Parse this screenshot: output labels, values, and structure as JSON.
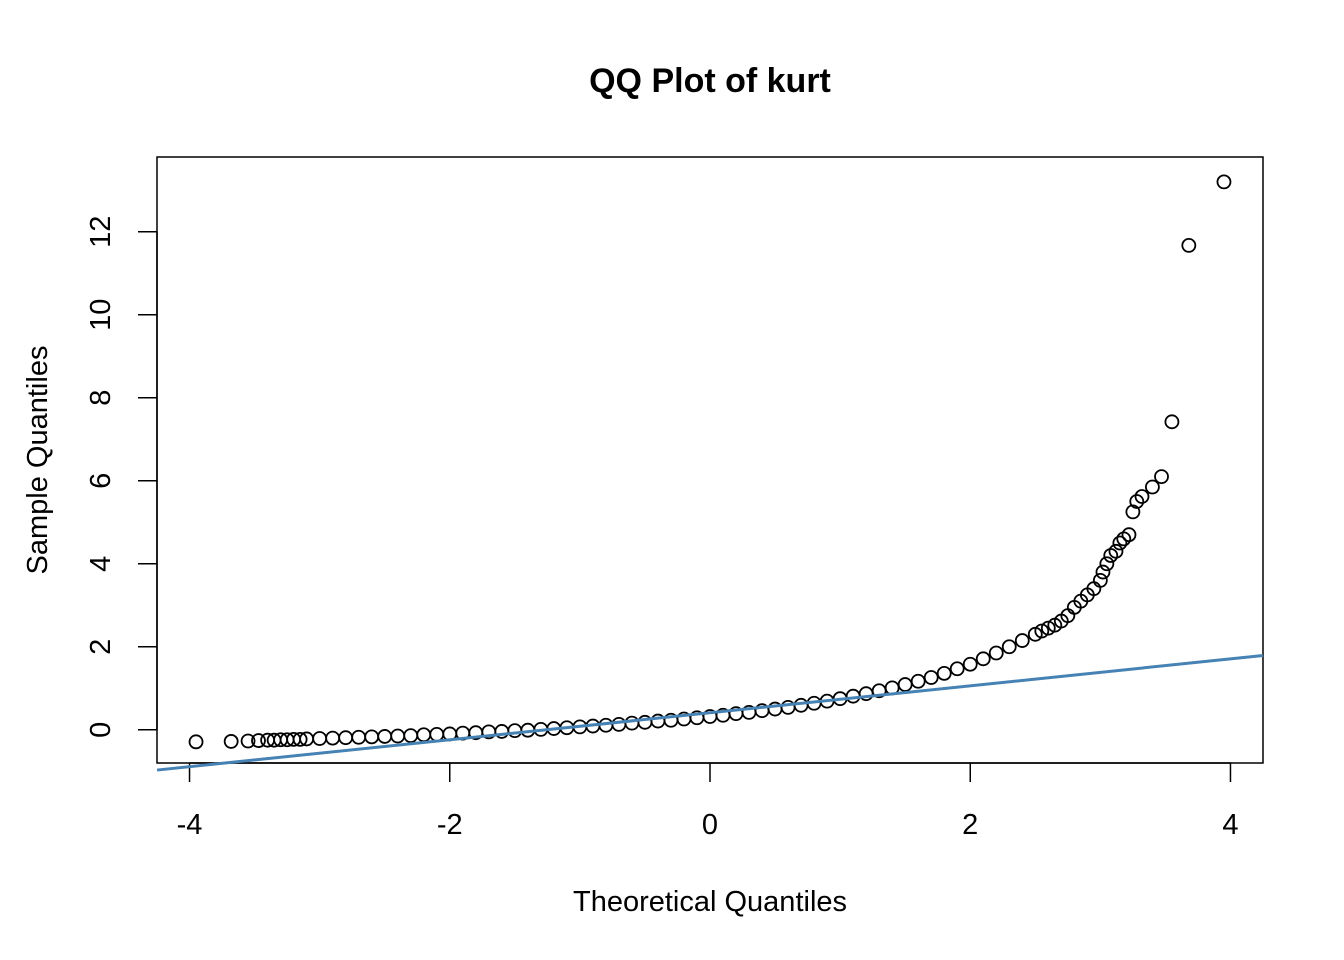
{
  "chart_data": {
    "type": "scatter",
    "title": "QQ Plot of kurt",
    "xlabel": "Theoretical Quantiles",
    "ylabel": "Sample Quantiles",
    "xlim": [
      -4.25,
      4.25
    ],
    "ylim": [
      -0.8,
      13.8
    ],
    "x_ticks": [
      -4,
      -2,
      0,
      2,
      4
    ],
    "y_ticks": [
      0,
      2,
      4,
      6,
      8,
      10,
      12
    ],
    "grid": false,
    "legend": "none",
    "point_color": "#000000",
    "line_color": "#4682B4",
    "reference_line": {
      "name": "",
      "points": [
        [
          -4.25,
          -0.97
        ],
        [
          4.25,
          1.79
        ]
      ]
    },
    "series": [
      {
        "name": "",
        "points": [
          [
            -3.95,
            -0.29
          ],
          [
            -3.68,
            -0.28
          ],
          [
            -3.55,
            -0.27
          ],
          [
            -3.47,
            -0.26
          ],
          [
            -3.4,
            -0.25
          ],
          [
            -3.35,
            -0.25
          ],
          [
            -3.3,
            -0.24
          ],
          [
            -3.25,
            -0.24
          ],
          [
            -3.2,
            -0.23
          ],
          [
            -3.15,
            -0.23
          ],
          [
            -3.1,
            -0.22
          ],
          [
            -3.0,
            -0.21
          ],
          [
            -2.9,
            -0.2
          ],
          [
            -2.8,
            -0.19
          ],
          [
            -2.7,
            -0.18
          ],
          [
            -2.6,
            -0.17
          ],
          [
            -2.5,
            -0.16
          ],
          [
            -2.4,
            -0.15
          ],
          [
            -2.3,
            -0.14
          ],
          [
            -2.2,
            -0.12
          ],
          [
            -2.1,
            -0.11
          ],
          [
            -2.0,
            -0.1
          ],
          [
            -1.9,
            -0.08
          ],
          [
            -1.8,
            -0.07
          ],
          [
            -1.7,
            -0.05
          ],
          [
            -1.6,
            -0.04
          ],
          [
            -1.5,
            -0.02
          ],
          [
            -1.4,
            -0.01
          ],
          [
            -1.3,
            0.01
          ],
          [
            -1.2,
            0.03
          ],
          [
            -1.1,
            0.05
          ],
          [
            -1.0,
            0.07
          ],
          [
            -0.9,
            0.09
          ],
          [
            -0.8,
            0.11
          ],
          [
            -0.7,
            0.13
          ],
          [
            -0.6,
            0.16
          ],
          [
            -0.5,
            0.18
          ],
          [
            -0.4,
            0.21
          ],
          [
            -0.3,
            0.23
          ],
          [
            -0.2,
            0.26
          ],
          [
            -0.1,
            0.29
          ],
          [
            0.0,
            0.32
          ],
          [
            0.1,
            0.35
          ],
          [
            0.2,
            0.39
          ],
          [
            0.3,
            0.42
          ],
          [
            0.4,
            0.46
          ],
          [
            0.5,
            0.5
          ],
          [
            0.6,
            0.54
          ],
          [
            0.7,
            0.59
          ],
          [
            0.8,
            0.64
          ],
          [
            0.9,
            0.69
          ],
          [
            1.0,
            0.75
          ],
          [
            1.1,
            0.81
          ],
          [
            1.2,
            0.87
          ],
          [
            1.3,
            0.94
          ],
          [
            1.4,
            1.01
          ],
          [
            1.5,
            1.09
          ],
          [
            1.6,
            1.17
          ],
          [
            1.7,
            1.26
          ],
          [
            1.8,
            1.36
          ],
          [
            1.9,
            1.47
          ],
          [
            2.0,
            1.58
          ],
          [
            2.1,
            1.71
          ],
          [
            2.2,
            1.85
          ],
          [
            2.3,
            2.0
          ],
          [
            2.4,
            2.15
          ],
          [
            2.5,
            2.3
          ],
          [
            2.55,
            2.38
          ],
          [
            2.6,
            2.45
          ],
          [
            2.65,
            2.52
          ],
          [
            2.7,
            2.62
          ],
          [
            2.75,
            2.75
          ],
          [
            2.8,
            2.95
          ],
          [
            2.85,
            3.1
          ],
          [
            2.9,
            3.25
          ],
          [
            2.95,
            3.4
          ],
          [
            3.0,
            3.6
          ],
          [
            3.02,
            3.8
          ],
          [
            3.05,
            4.0
          ],
          [
            3.08,
            4.2
          ],
          [
            3.12,
            4.3
          ],
          [
            3.15,
            4.5
          ],
          [
            3.18,
            4.6
          ],
          [
            3.22,
            4.7
          ],
          [
            3.25,
            5.25
          ],
          [
            3.28,
            5.5
          ],
          [
            3.32,
            5.62
          ],
          [
            3.4,
            5.85
          ],
          [
            3.47,
            6.1
          ],
          [
            3.55,
            7.42
          ],
          [
            3.68,
            11.67
          ],
          [
            3.95,
            13.2
          ]
        ]
      }
    ]
  }
}
